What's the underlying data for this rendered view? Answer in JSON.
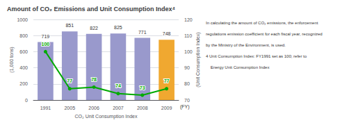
{
  "chart_data": {
    "type": "bar",
    "title": "Amount of CO₂ Emissions and Unit Consumption Index⁴",
    "ylabel": "(1,000 tons)",
    "y2label": "(Unit Consumption Index)",
    "xlabel": "CO₂ Unit Consumption Index",
    "x_unit": "(FY)",
    "notes": [
      "In calculating the amount of CO₂ emissions, the enforcement",
      "regulations emission coefficient for each fiscal year, recognized",
      "by the Ministry of the Environment, is used.",
      "4 Unit Consumption Index: FY1991 set as 100; refer to",
      "    Energy Unit Consumption Index"
    ],
    "categories": [
      "1991",
      "2005",
      "2006",
      "2007",
      "2008",
      "2009"
    ],
    "series": [
      {
        "type": "bar",
        "colors": [
          "#9999cc",
          "#9999cc",
          "#9999cc",
          "#9999cc",
          "#9999cc",
          "#f0a830"
        ],
        "values": [
          719,
          851,
          822,
          825,
          771,
          748
        ]
      },
      {
        "type": "line",
        "axis": "y2",
        "color": "#00aa00",
        "marker": "circle",
        "line_style": "solid",
        "values": [
          100,
          77,
          78,
          74,
          73,
          77
        ]
      }
    ],
    "ylim": [
      0,
      1000
    ],
    "yticks": [
      0,
      200,
      400,
      600,
      800,
      1000
    ],
    "y2lim": [
      70,
      120
    ],
    "y2ticks": [
      70,
      80,
      90,
      100,
      110,
      120
    ],
    "grid": true,
    "data_labels": true
  }
}
